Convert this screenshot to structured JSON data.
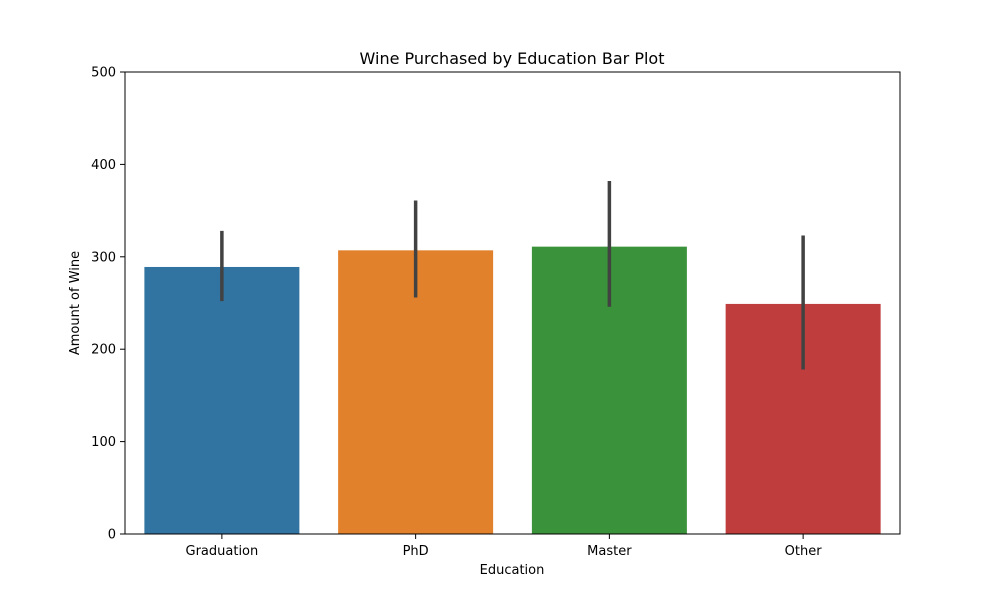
{
  "chart_data": {
    "type": "bar",
    "title": "Wine Purchased by Education Bar Plot",
    "xlabel": "Education",
    "ylabel": "Amount of Wine",
    "categories": [
      "Graduation",
      "PhD",
      "Master",
      "Other"
    ],
    "values": [
      289,
      307,
      311,
      249
    ],
    "error_low": [
      252,
      256,
      246,
      178
    ],
    "error_high": [
      328,
      361,
      382,
      323
    ],
    "colors": [
      "#3274a1",
      "#e1812c",
      "#3a923a",
      "#c03d3e"
    ],
    "error_color": "#424242",
    "ylim": [
      0,
      500
    ],
    "yticks": [
      0,
      100,
      200,
      300,
      400,
      500
    ],
    "grid": false,
    "legend": false
  }
}
